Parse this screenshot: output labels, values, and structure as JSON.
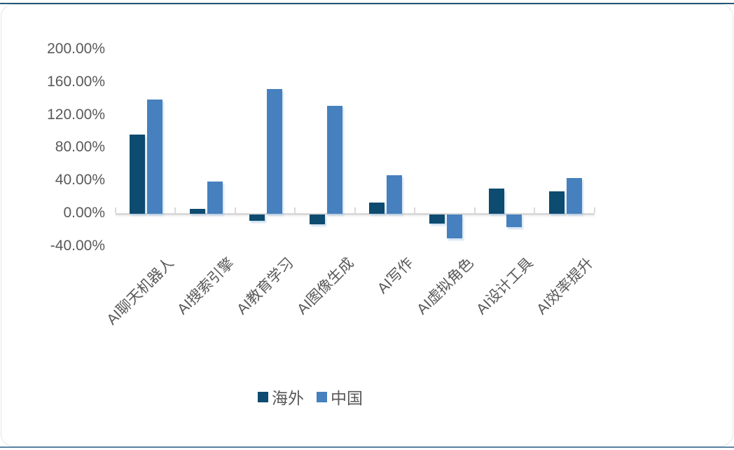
{
  "chart_data": {
    "type": "bar",
    "categories": [
      "AI聊天机器人",
      "AI搜索引擎",
      "AI教育学习",
      "AI图像生成",
      "AI写作",
      "AI虚拟角色",
      "AI设计工具",
      "AI效率提升"
    ],
    "series": [
      {
        "name": "海外",
        "color": "#0d4b70",
        "values": [
          97,
          6,
          -8,
          -12,
          14,
          -11,
          31,
          27
        ]
      },
      {
        "name": "中国",
        "color": "#4680be",
        "values": [
          139,
          39,
          152,
          132,
          47,
          -29,
          -15,
          44
        ]
      }
    ],
    "y_ticks": [
      "200.00%",
      "160.00%",
      "120.00%",
      "80.00%",
      "40.00%",
      "0.00%",
      "-40.00%"
    ],
    "y_tick_values": [
      200,
      160,
      120,
      80,
      40,
      0,
      -40
    ],
    "ylim": [
      -40,
      200
    ],
    "value_format": "percent",
    "grid": false,
    "legend_position": "bottom",
    "title": "",
    "xlabel": "",
    "ylabel": ""
  },
  "frame": {
    "top_line_color": "#24587a",
    "bottom_line_color": "#5e87a3",
    "axis_color": "#d9d9d9",
    "text_color": "#595959",
    "background": "#ffffff"
  }
}
